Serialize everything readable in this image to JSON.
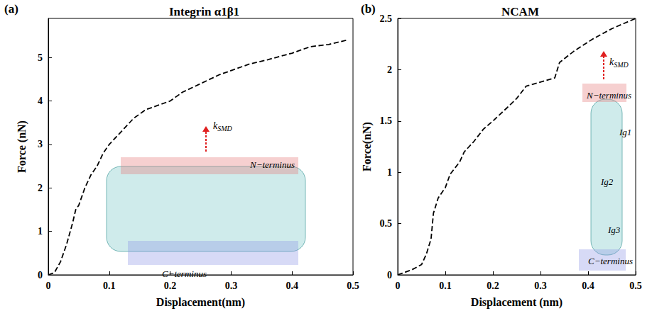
{
  "chart_data": [
    {
      "type": "line",
      "panel": "(a)",
      "title": "Integrin α1β1",
      "x_label": "Displacement(nm)",
      "y_label": "Force (nN)",
      "x": [
        0,
        0.01,
        0.02,
        0.03,
        0.04,
        0.045,
        0.05,
        0.06,
        0.07,
        0.08,
        0.09,
        0.1,
        0.12,
        0.14,
        0.16,
        0.18,
        0.2,
        0.22,
        0.25,
        0.28,
        0.3,
        0.33,
        0.36,
        0.4,
        0.43,
        0.46,
        0.49
      ],
      "series": [
        {
          "color": "#000000",
          "line_style": "dashed",
          "marker": "none",
          "values": [
            0,
            0.05,
            0.3,
            0.7,
            1.2,
            1.5,
            1.6,
            2.0,
            2.3,
            2.5,
            2.8,
            3.0,
            3.3,
            3.6,
            3.8,
            3.9,
            4.0,
            4.2,
            4.4,
            4.6,
            4.7,
            4.85,
            4.95,
            5.1,
            5.25,
            5.3,
            5.4
          ]
        }
      ],
      "xlim": [
        0,
        0.5
      ],
      "xticks": [
        0,
        0.1,
        0.2,
        0.3,
        0.4,
        0.5
      ],
      "ylim": [
        0,
        5.9
      ],
      "yticks": [
        0,
        1,
        2,
        3,
        4,
        5
      ],
      "grid": false,
      "force_label": {
        "text": "k",
        "subscript": "SMD"
      },
      "annotations": [
        "N−terminus",
        "C−terminus"
      ]
    },
    {
      "type": "line",
      "panel": "(b)",
      "title": "NCAM",
      "x_label": "Displacement (nm)",
      "y_label": "Force(nN)",
      "x": [
        0,
        0.03,
        0.05,
        0.06,
        0.07,
        0.075,
        0.085,
        0.1,
        0.11,
        0.13,
        0.14,
        0.16,
        0.18,
        0.2,
        0.23,
        0.25,
        0.27,
        0.3,
        0.33,
        0.34,
        0.37,
        0.41,
        0.45,
        0.5
      ],
      "series": [
        {
          "color": "#000000",
          "line_style": "dashed",
          "marker": "none",
          "values": [
            0,
            0.05,
            0.1,
            0.2,
            0.35,
            0.6,
            0.75,
            0.85,
            0.98,
            1.1,
            1.2,
            1.3,
            1.42,
            1.5,
            1.63,
            1.72,
            1.84,
            1.88,
            1.92,
            2.07,
            2.18,
            2.3,
            2.4,
            2.5
          ]
        }
      ],
      "xlim": [
        0,
        0.5
      ],
      "xticks": [
        0,
        0.1,
        0.2,
        0.3,
        0.4,
        0.5
      ],
      "ylim": [
        0,
        2.5
      ],
      "yticks": [
        0,
        0.5,
        1,
        1.5,
        2,
        2.5
      ],
      "grid": false,
      "force_label": {
        "text": "k",
        "subscript": "SMD"
      },
      "annotations": [
        "N−terminus",
        "Ig1",
        "Ig2",
        "Ig3",
        "C−terminus"
      ]
    }
  ]
}
